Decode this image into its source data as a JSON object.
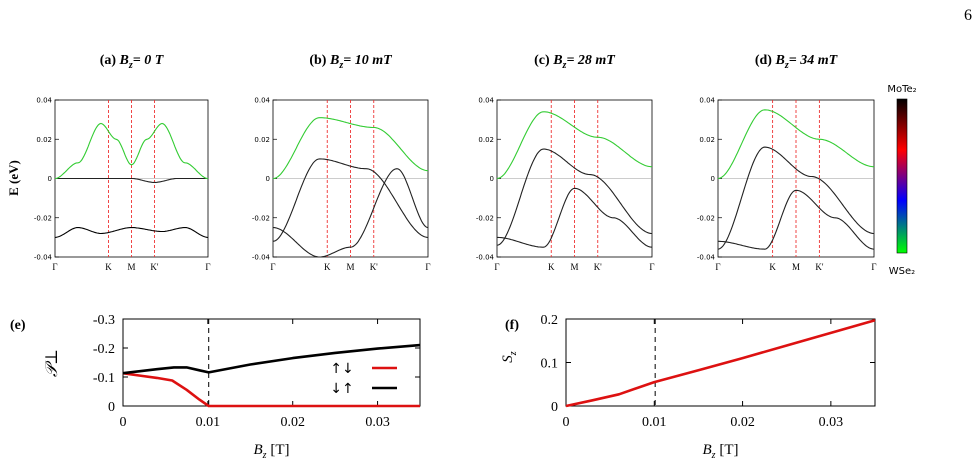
{
  "page_number": "6",
  "colorbar": {
    "top_label": "MoTe₂",
    "bottom_label": "WSe₂",
    "stops": [
      "#000000",
      "#ff0000",
      "#0000ff",
      "#00ff00"
    ]
  },
  "band_panels": {
    "ylabel": "E (eV)",
    "yticks": [
      "0.04",
      "0.02",
      "0",
      "-0.02",
      "-0.04"
    ],
    "xticks": [
      "Γ",
      "K",
      "M",
      "K'",
      "Γ"
    ],
    "panels": [
      {
        "letter": "(a)",
        "field_value": "= 0 T"
      },
      {
        "letter": "(b)",
        "field_value": "= 10 mT"
      },
      {
        "letter": "(c)",
        "field_value": "= 28 mT"
      },
      {
        "letter": "(d)",
        "field_value": "= 34 mT"
      }
    ]
  },
  "chart_data": [
    {
      "panel": "(a)",
      "type": "line",
      "title": "(a) B_z = 0 T",
      "ylabel": "E (eV)",
      "x": [
        "Γ",
        "K",
        "M",
        "K'",
        "Γ"
      ],
      "ylim": [
        -0.04,
        0.04
      ],
      "series": [
        {
          "x": [
            0,
            0.2,
            0.35,
            0.5,
            0.65,
            0.8,
            1
          ],
          "values": [
            0.0,
            0.0,
            0.0,
            0.0,
            -0.002,
            0.0,
            0.0
          ]
        },
        {
          "x": [
            0,
            0.15,
            0.3,
            0.5,
            0.7,
            0.85,
            1
          ],
          "values": [
            -0.03,
            -0.025,
            -0.028,
            -0.025,
            -0.027,
            -0.025,
            -0.03
          ]
        },
        {
          "x": [
            0,
            0.15,
            0.3,
            0.4,
            0.5,
            0.6,
            0.7,
            0.85,
            1
          ],
          "values": [
            0.0,
            0.008,
            0.028,
            0.02,
            0.007,
            0.02,
            0.028,
            0.008,
            0.0
          ]
        }
      ]
    },
    {
      "panel": "(b)",
      "type": "line",
      "title": "(b) B_z = 10 mT",
      "ylabel": "E (eV)",
      "x": [
        "Γ",
        "K",
        "M",
        "K'",
        "Γ"
      ],
      "ylim": [
        -0.04,
        0.04
      ],
      "series": [
        {
          "x": [
            0,
            0.3,
            0.65,
            1
          ],
          "values": [
            0.0,
            0.031,
            0.026,
            0.004
          ]
        },
        {
          "x": [
            0,
            0.3,
            0.6,
            1
          ],
          "values": [
            -0.032,
            0.01,
            0.005,
            -0.03
          ]
        },
        {
          "x": [
            0,
            0.3,
            0.5,
            0.8,
            1
          ],
          "values": [
            -0.025,
            -0.04,
            -0.035,
            0.005,
            -0.025
          ]
        }
      ]
    },
    {
      "panel": "(c)",
      "type": "line",
      "title": "(c) B_z = 28 mT",
      "ylabel": "E (eV)",
      "x": [
        "Γ",
        "K",
        "M",
        "K'",
        "Γ"
      ],
      "ylim": [
        -0.04,
        0.04
      ],
      "series": [
        {
          "x": [
            0,
            0.3,
            0.65,
            1
          ],
          "values": [
            0.0,
            0.034,
            0.021,
            0.006
          ]
        },
        {
          "x": [
            0,
            0.3,
            0.6,
            1
          ],
          "values": [
            -0.034,
            0.015,
            0.002,
            -0.028
          ]
        },
        {
          "x": [
            0,
            0.3,
            0.5,
            0.75,
            1
          ],
          "values": [
            -0.03,
            -0.035,
            -0.005,
            -0.02,
            -0.035
          ]
        }
      ]
    },
    {
      "panel": "(d)",
      "type": "line",
      "title": "(d) B_z = 34 mT",
      "ylabel": "E (eV)",
      "x": [
        "Γ",
        "K",
        "M",
        "K'",
        "Γ"
      ],
      "ylim": [
        -0.04,
        0.04
      ],
      "series": [
        {
          "x": [
            0,
            0.3,
            0.65,
            1
          ],
          "values": [
            0.0,
            0.035,
            0.02,
            0.006
          ]
        },
        {
          "x": [
            0,
            0.3,
            0.6,
            1
          ],
          "values": [
            -0.036,
            0.016,
            0.001,
            -0.028
          ]
        },
        {
          "x": [
            0,
            0.3,
            0.5,
            0.75,
            1
          ],
          "values": [
            -0.032,
            -0.036,
            -0.006,
            -0.02,
            -0.036
          ]
        }
      ]
    },
    {
      "panel": "(e)",
      "type": "line",
      "xlabel": "B_z [T]",
      "ylabel": "𝒫⊥",
      "xlim": [
        0,
        0.035
      ],
      "ylim": [
        0,
        -0.3
      ],
      "xticks": [
        "0",
        "0.01",
        "0.02",
        "0.03"
      ],
      "yticks": [
        "-0.3",
        "-0.2",
        "-0.1",
        "0"
      ],
      "legend_position": "right",
      "series": [
        {
          "name": "↑↓",
          "color": "#dd1111",
          "x": [
            0,
            0.002,
            0.004,
            0.0058,
            0.0075,
            0.009,
            0.0101,
            0.015,
            0.025,
            0.035
          ],
          "values": [
            -0.113,
            -0.105,
            -0.097,
            -0.088,
            -0.056,
            -0.022,
            0.0,
            0.0,
            0.0,
            0.0
          ]
        },
        {
          "name": "↓↑",
          "color": "#000000",
          "x": [
            0,
            0.002,
            0.004,
            0.006,
            0.0075,
            0.009,
            0.0101,
            0.015,
            0.02,
            0.025,
            0.03,
            0.035
          ],
          "values": [
            -0.113,
            -0.12,
            -0.127,
            -0.133,
            -0.133,
            -0.123,
            -0.116,
            -0.143,
            -0.165,
            -0.183,
            -0.198,
            -0.21
          ]
        }
      ]
    },
    {
      "panel": "(f)",
      "type": "line",
      "xlabel": "B_z [T]",
      "ylabel": "S_z",
      "xlim": [
        0,
        0.035
      ],
      "ylim": [
        0,
        0.2
      ],
      "xticks": [
        "0",
        "0.01",
        "0.02",
        "0.03"
      ],
      "yticks": [
        "0",
        "0.1",
        "0.2"
      ],
      "series": [
        {
          "color": "#dd1111",
          "x": [
            0,
            0.003,
            0.006,
            0.01,
            0.015,
            0.02,
            0.025,
            0.03,
            0.035
          ],
          "values": [
            0.0,
            0.013,
            0.027,
            0.055,
            0.082,
            0.11,
            0.139,
            0.168,
            0.197
          ]
        }
      ]
    }
  ]
}
